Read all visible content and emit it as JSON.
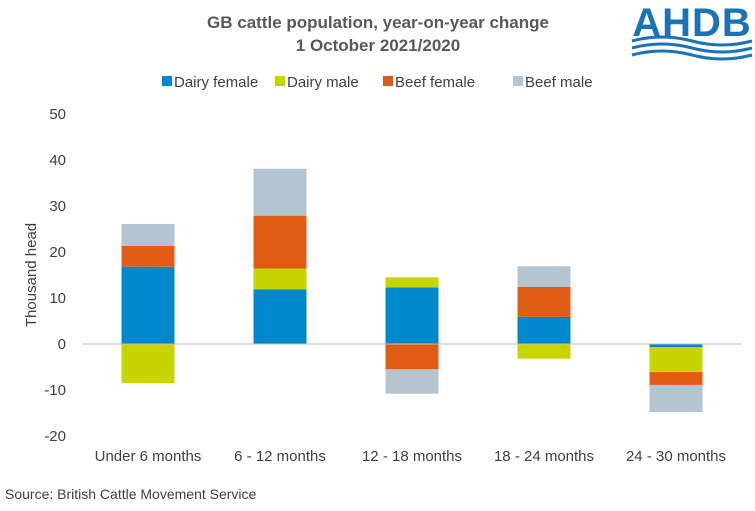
{
  "logo": {
    "text": "AHDB"
  },
  "source": "Source: British Cattle Movement Service",
  "chart_data": {
    "type": "bar",
    "stacked": true,
    "title": "GB cattle population, year-on-year change",
    "subtitle": "1 October 2021/2020",
    "ylabel": "Thousand head",
    "xlabel": "",
    "ylim": [
      -20,
      50
    ],
    "yticks": [
      50,
      40,
      30,
      20,
      10,
      0,
      -10,
      -20
    ],
    "grid": false,
    "legend_position": "top",
    "categories": [
      "Under 6 months",
      "6 - 12 months",
      "12 - 18 months",
      "18 - 24 months",
      "24 - 30 months"
    ],
    "series": [
      {
        "name": "Dairy female",
        "color": "#0088cc",
        "values": [
          16.8,
          11.9,
          12.3,
          5.9,
          -0.7
        ]
      },
      {
        "name": "Dairy male",
        "color": "#c8d400",
        "values": [
          -8.5,
          4.5,
          2.2,
          -3.2,
          -5.4
        ]
      },
      {
        "name": "Beef female",
        "color": "#e05c16",
        "values": [
          4.5,
          11.5,
          -5.5,
          6.5,
          -2.8
        ]
      },
      {
        "name": "Beef male",
        "color": "#b4c4d0",
        "values": [
          4.8,
          10.2,
          -5.3,
          4.5,
          -5.9
        ]
      }
    ]
  }
}
